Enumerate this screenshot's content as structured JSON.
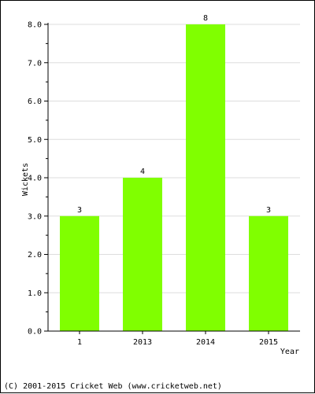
{
  "chart_data": {
    "type": "bar",
    "categories": [
      "1",
      "2013",
      "2014",
      "2015"
    ],
    "values": [
      3,
      4,
      8,
      3
    ],
    "value_labels": [
      "3",
      "4",
      "8",
      "3"
    ],
    "title": "",
    "xlabel": "Year",
    "ylabel": "Wickets",
    "ylim": [
      0,
      8
    ],
    "yticks": [
      0,
      1,
      2,
      3,
      4,
      5,
      6,
      7,
      8
    ],
    "ytick_labels": [
      "0.0",
      "1.0",
      "2.0",
      "3.0",
      "4.0",
      "5.0",
      "6.0",
      "7.0",
      "8.0"
    ],
    "grid": true,
    "bar_color": "#80ff00",
    "grid_color": "#dddddd"
  },
  "footer": {
    "credit": "(C) 2001-2015 Cricket Web (www.cricketweb.net)"
  }
}
